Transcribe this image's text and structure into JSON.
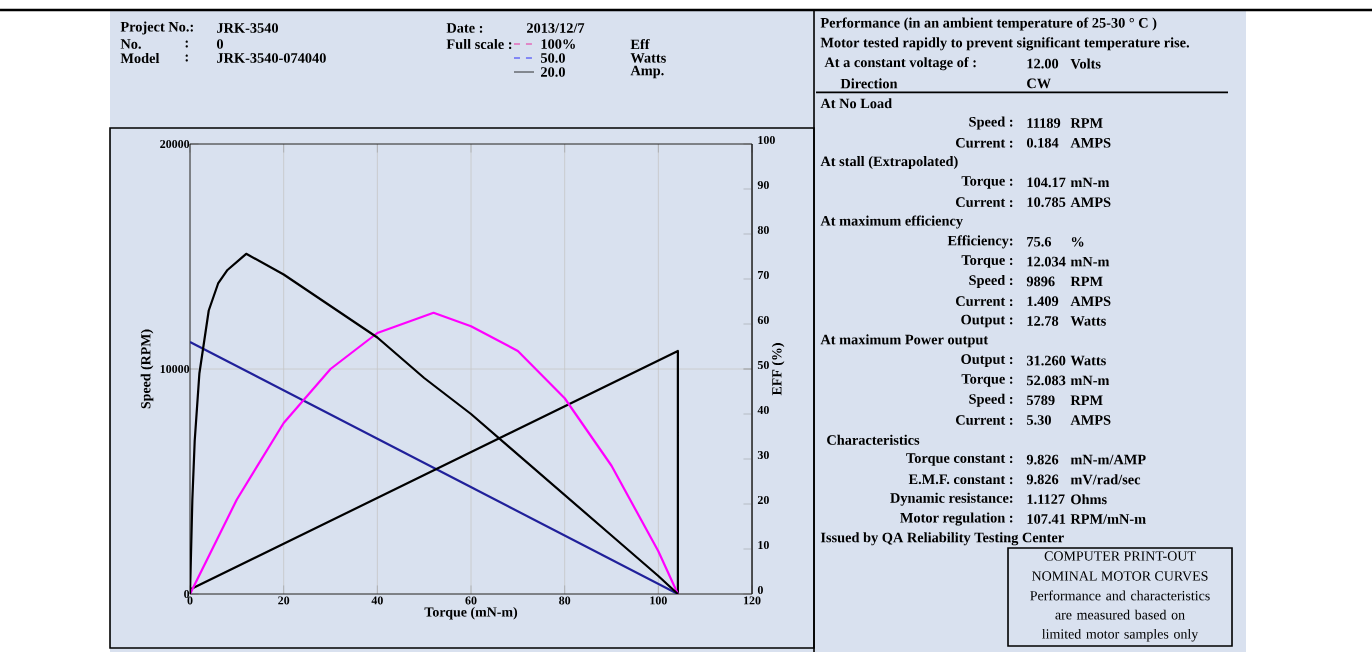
{
  "chart_data": [
    {
      "type": "line",
      "xlabel": "Torque (mN-m)",
      "ylabel": "Speed (RPM)",
      "y2label": "EFF (%)",
      "xlim": [
        0,
        120
      ],
      "xticks": [
        0,
        20,
        40,
        60,
        80,
        100,
        120
      ],
      "ylim": [
        0,
        20000
      ],
      "yticks": [
        0,
        10000,
        20000
      ],
      "y2lim": [
        0,
        100
      ],
      "y2ticks": [
        0,
        10,
        20,
        30,
        40,
        50,
        60,
        70,
        80,
        90,
        100
      ],
      "grid": true,
      "series": [
        {
          "color": "#20209a",
          "x": [
            0,
            104.17
          ],
          "values": [
            11200,
            0
          ]
        },
        {
          "color": "#000000",
          "x": [
            0,
            104.17,
            104.17
          ],
          "values": [
            200,
            10800,
            0
          ]
        },
        {
          "color": "#ff00ff",
          "x": [
            0,
            10,
            20,
            30,
            40,
            52,
            60,
            70,
            80,
            90,
            100,
            104.17
          ],
          "values": [
            0,
            4200,
            7600,
            10000,
            11600,
            12500,
            11900,
            10800,
            8700,
            5700,
            1900,
            0
          ]
        },
        {
          "color": "#000000",
          "axis": "y2",
          "x": [
            0,
            0.5,
            1,
            2,
            4,
            6,
            8,
            12,
            20,
            30,
            40,
            50,
            60,
            70,
            80,
            90,
            100,
            104.17
          ],
          "values": [
            0,
            21,
            34,
            49,
            63,
            69,
            72,
            75.6,
            71,
            64,
            57,
            48,
            40,
            31,
            22,
            13,
            4,
            0
          ]
        }
      ],
      "annotations": [
        "Project No.:",
        "JRK-3540",
        "No.",
        ":",
        "0",
        "Model",
        ":",
        "JRK-3540-074040",
        "Date :",
        "2013/12/7",
        "Full scale :",
        "100%",
        "Eff",
        "50.0",
        "Watts",
        "20.0",
        "Amp."
      ]
    },
    {
      "type": "other",
      "annotations": [
        "Performance (in an ambient temperature of 25-30 ° C )",
        "Motor tested rapidly to prevent significant temperature rise.",
        "At a constant voltage of :",
        "12.00",
        "Volts",
        "Direction",
        "CW",
        "At No Load",
        "Speed :",
        "11189",
        "RPM",
        "Current :",
        "0.184",
        "AMPS",
        "At stall (Extrapolated)",
        "Torque :",
        "104.17",
        "mN-m",
        "Current :",
        "10.785",
        "AMPS",
        "At maximum efficiency",
        "Efficiency:",
        "75.6",
        "%",
        "Torque :",
        "12.034",
        "mN-m",
        "Speed :",
        "9896",
        "RPM",
        "Current :",
        "1.409",
        "AMPS",
        "Output :",
        "12.78",
        "Watts",
        "At maximum Power output",
        "Output :",
        "31.260",
        "Watts",
        "Torque :",
        "52.083",
        "mN-m",
        "Speed :",
        "5789",
        "RPM",
        "Current :",
        "5.30",
        "AMPS",
        "Characteristics",
        "Torque constant :",
        "9.826",
        "mN-m/AMP",
        "E.M.F. constant :",
        "9.826",
        "mV/rad/sec",
        "Dynamic resistance:",
        "1.1127",
        "Ohms",
        "Motor regulation :",
        "107.41",
        "RPM/mN-m",
        "Issued by QA Reliability Testing Center",
        "COMPUTER PRINT-OUT",
        "NOMINAL MOTOR CURVES",
        "Performance and characteristics are measured based on limited motor samples only"
      ]
    }
  ]
}
